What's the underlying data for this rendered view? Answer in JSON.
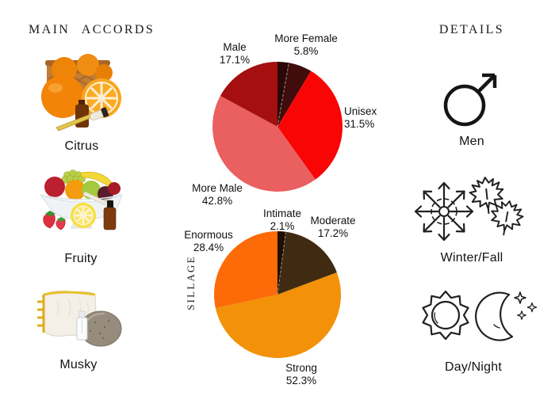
{
  "page": {
    "background_color": "#ffffff",
    "text_color": "#161616"
  },
  "left_panel": {
    "title": "MAIN ACCORDS",
    "accords": [
      {
        "label": "Citrus",
        "icon": "citrus-oranges-essential-oil-photo"
      },
      {
        "label": "Fruity",
        "icon": "fruit-bowl-essential-oil-photo"
      },
      {
        "label": "Musky",
        "icon": "musk-fur-stone-dropper-photo"
      }
    ]
  },
  "right_panel": {
    "title": "DETAILS",
    "items": [
      {
        "label": "Men",
        "icon": "male-gender-icon"
      },
      {
        "label": "Winter/Fall",
        "icon": "snowflake-and-maple-leaves-icon"
      },
      {
        "label": "Day/Night",
        "icon": "sun-and-moon-icon"
      }
    ]
  },
  "chart_data": [
    {
      "type": "pie",
      "name": "gender-audience",
      "title": "",
      "legend": "none",
      "start_angle": "12-oclock",
      "direction": "clockwise",
      "slices": [
        {
          "label": "",
          "pct": "",
          "value": 2.8,
          "color": "#2b0707"
        },
        {
          "label": "More Female",
          "pct": "5.8%",
          "value": 5.8,
          "color": "#400c0c"
        },
        {
          "label": "Unisex",
          "pct": "31.5%",
          "value": 31.5,
          "color": "#f90505"
        },
        {
          "label": "More Male",
          "pct": "42.8%",
          "value": 42.8,
          "color": "#ea5f5f"
        },
        {
          "label": "Male",
          "pct": "17.1%",
          "value": 17.1,
          "color": "#a50f0f"
        }
      ]
    },
    {
      "type": "pie",
      "name": "sillage",
      "title": "",
      "ylabel": "SILLAGE",
      "legend": "none",
      "start_angle": "12-oclock",
      "direction": "clockwise",
      "slices": [
        {
          "label": "Intimate",
          "pct": "2.1%",
          "value": 2.1,
          "color": "#1f0f02"
        },
        {
          "label": "Moderate",
          "pct": "17.2%",
          "value": 17.2,
          "color": "#402b12"
        },
        {
          "label": "Strong",
          "pct": "52.3%",
          "value": 52.3,
          "color": "#f39108"
        },
        {
          "label": "Enormous",
          "pct": "28.4%",
          "value": 28.4,
          "color": "#fd6a08"
        }
      ]
    }
  ]
}
